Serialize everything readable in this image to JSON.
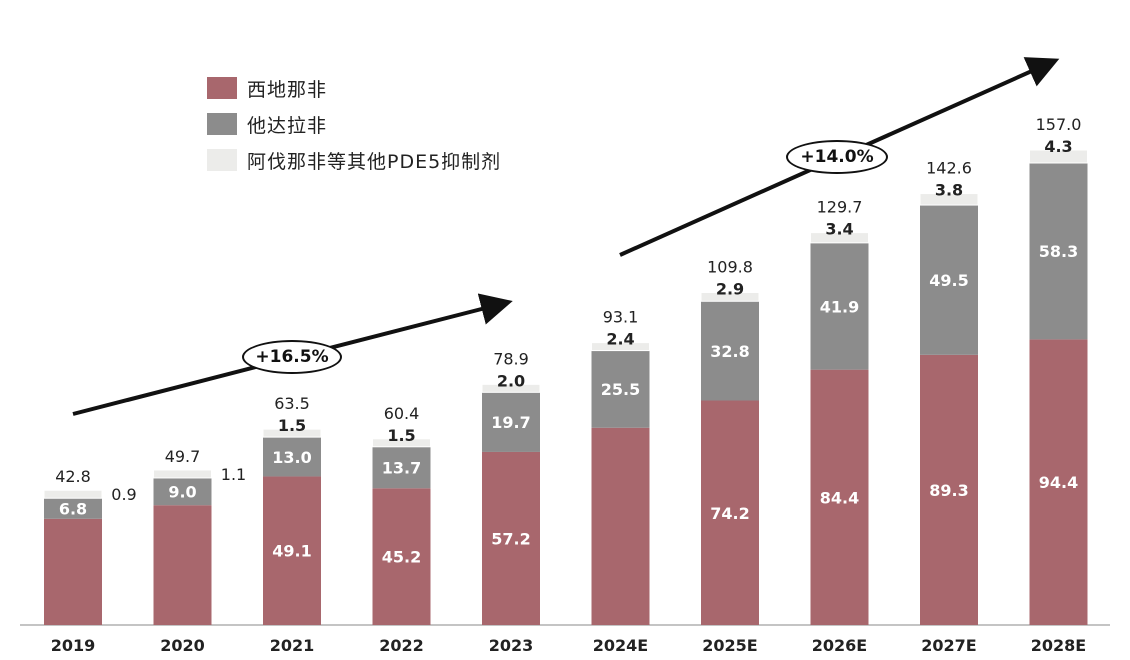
{
  "colors": {
    "sildenafil": "#a8676d",
    "tadalafil": "#8c8c8c",
    "others": "#ececea",
    "text": "#222222",
    "bar_label": "#ffffff",
    "arrow": "#111111"
  },
  "legend": [
    {
      "label": "西地那非",
      "color": "#a8676d"
    },
    {
      "label": "他达拉非",
      "color": "#8c8c8c"
    },
    {
      "label": "阿伐那非等其他PDE5抑制剂",
      "color": "#ececea"
    }
  ],
  "cagr": [
    {
      "label": "+16.5%"
    },
    {
      "label": "+14.0%"
    }
  ],
  "chart_data": {
    "type": "bar",
    "stacked": true,
    "categories": [
      "2019",
      "2020",
      "2021",
      "2022",
      "2023",
      "2024E",
      "2025E",
      "2026E",
      "2027E",
      "2028E"
    ],
    "series": [
      {
        "name": "西地那非",
        "values": [
          35.1,
          39.6,
          49.1,
          45.2,
          57.2,
          65.2,
          74.2,
          84.4,
          89.3,
          94.4
        ]
      },
      {
        "name": "他达拉非",
        "values": [
          6.8,
          9.0,
          13.0,
          13.7,
          19.7,
          25.5,
          32.8,
          41.9,
          49.5,
          58.3
        ]
      },
      {
        "name": "阿伐那非等其他PDE5抑制剂",
        "values": [
          0.9,
          1.1,
          1.5,
          1.5,
          2.0,
          2.4,
          2.9,
          3.4,
          3.8,
          4.3
        ]
      }
    ],
    "totals": [
      42.8,
      49.7,
      63.5,
      60.4,
      78.9,
      93.1,
      109.8,
      129.7,
      142.6,
      157.0
    ],
    "value_labels": {
      "series0": [
        "",
        "",
        "49.1",
        "45.2",
        "57.2",
        "",
        "74.2",
        "84.4",
        "89.3",
        "94.4"
      ],
      "series1": [
        "6.8",
        "9.0",
        "13.0",
        "13.7",
        "19.7",
        "25.5",
        "32.8",
        "41.9",
        "49.5",
        "58.3"
      ],
      "series2": [
        "0.9",
        "1.1",
        "1.5",
        "1.5",
        "2.0",
        "2.4",
        "2.9",
        "3.4",
        "3.8",
        "4.3"
      ],
      "totals": [
        "42.8",
        "49.7",
        "63.5",
        "60.4",
        "78.9",
        "93.1",
        "109.8",
        "129.7",
        "142.6",
        "157.0"
      ]
    },
    "ylim": [
      0,
      157
    ],
    "grid": false,
    "legend_position": "top-left",
    "xlabel": "",
    "ylabel": ""
  }
}
